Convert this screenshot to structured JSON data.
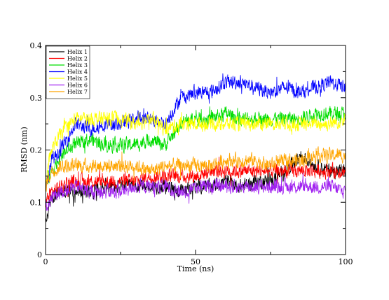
{
  "chart_data": {
    "type": "line",
    "title": "",
    "xlabel": "Time (ns)",
    "ylabel": "RMSD (nm)",
    "xlim": [
      0,
      100
    ],
    "ylim": [
      0,
      0.4
    ],
    "xticks": [
      0,
      50,
      100
    ],
    "xtick_labels": [
      "0",
      "50",
      "100"
    ],
    "yticks": [
      0,
      0.1,
      0.2,
      0.3,
      0.4
    ],
    "ytick_labels": [
      "0",
      "0.1",
      "0.2",
      "0.3",
      "0.4"
    ],
    "grid": false,
    "legend_position": "top-left",
    "x": [
      0,
      2,
      5,
      10,
      15,
      20,
      25,
      30,
      35,
      40,
      45,
      50,
      55,
      60,
      65,
      70,
      75,
      80,
      85,
      90,
      95,
      100
    ],
    "series": [
      {
        "name": "Helix 1",
        "color": "#000000",
        "values": [
          0.06,
          0.11,
          0.12,
          0.12,
          0.12,
          0.13,
          0.13,
          0.13,
          0.13,
          0.13,
          0.12,
          0.13,
          0.13,
          0.14,
          0.13,
          0.14,
          0.14,
          0.16,
          0.19,
          0.17,
          0.16,
          0.16
        ]
      },
      {
        "name": "Helix 2",
        "color": "#ff0000",
        "values": [
          0.1,
          0.12,
          0.13,
          0.14,
          0.14,
          0.14,
          0.14,
          0.14,
          0.15,
          0.15,
          0.15,
          0.15,
          0.16,
          0.16,
          0.16,
          0.16,
          0.16,
          0.16,
          0.16,
          0.16,
          0.16,
          0.16
        ]
      },
      {
        "name": "Helix 3",
        "color": "#00dd00",
        "values": [
          0.13,
          0.16,
          0.19,
          0.21,
          0.22,
          0.21,
          0.21,
          0.21,
          0.22,
          0.21,
          0.25,
          0.26,
          0.26,
          0.27,
          0.26,
          0.26,
          0.26,
          0.26,
          0.26,
          0.27,
          0.27,
          0.27
        ]
      },
      {
        "name": "Helix 4",
        "color": "#0000ff",
        "values": [
          0.12,
          0.18,
          0.2,
          0.25,
          0.24,
          0.25,
          0.25,
          0.26,
          0.26,
          0.25,
          0.3,
          0.31,
          0.31,
          0.33,
          0.33,
          0.32,
          0.31,
          0.32,
          0.31,
          0.32,
          0.33,
          0.32
        ]
      },
      {
        "name": "Helix 5",
        "color": "#ffff00",
        "values": [
          0.14,
          0.2,
          0.23,
          0.26,
          0.26,
          0.26,
          0.26,
          0.25,
          0.26,
          0.24,
          0.25,
          0.25,
          0.25,
          0.25,
          0.25,
          0.25,
          0.25,
          0.25,
          0.25,
          0.25,
          0.25,
          0.26
        ]
      },
      {
        "name": "Helix 6",
        "color": "#a020f0",
        "values": [
          0.09,
          0.11,
          0.12,
          0.13,
          0.12,
          0.12,
          0.12,
          0.13,
          0.13,
          0.13,
          0.12,
          0.13,
          0.13,
          0.13,
          0.13,
          0.13,
          0.13,
          0.13,
          0.13,
          0.13,
          0.13,
          0.12
        ]
      },
      {
        "name": "Helix 7",
        "color": "#ffa500",
        "values": [
          0.13,
          0.16,
          0.17,
          0.17,
          0.17,
          0.17,
          0.17,
          0.17,
          0.16,
          0.17,
          0.17,
          0.17,
          0.17,
          0.18,
          0.18,
          0.18,
          0.17,
          0.18,
          0.18,
          0.19,
          0.19,
          0.19
        ]
      }
    ]
  }
}
